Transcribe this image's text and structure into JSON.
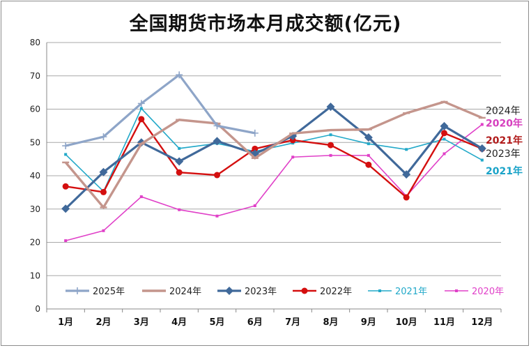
{
  "title": "全国期货市场本月成交额(亿元)",
  "chart_data": {
    "type": "line",
    "title": "全国期货市场本月成交额(亿元)",
    "categories": [
      "1月",
      "2月",
      "3月",
      "4月",
      "5月",
      "6月",
      "7月",
      "8月",
      "9月",
      "10月",
      "11月",
      "12月"
    ],
    "ylim": [
      0,
      80
    ],
    "yticks": [
      0,
      10,
      20,
      30,
      40,
      50,
      60,
      70,
      80
    ],
    "grid": "horizontal",
    "legend_position": "bottom",
    "series": [
      {
        "name": "2025年",
        "color": "#8ea5c8",
        "marker": "plus",
        "values": [
          49,
          51.7,
          61.7,
          70.3,
          55,
          52.8,
          null,
          null,
          null,
          null,
          null,
          null
        ]
      },
      {
        "name": "2024年",
        "color": "#c4958c",
        "marker": "dash",
        "values": [
          44,
          30.5,
          49.6,
          56.8,
          55.7,
          45.3,
          52.7,
          53.7,
          53.9,
          58.8,
          62.2,
          57.4
        ]
      },
      {
        "name": "2023年",
        "color": "#40699a",
        "marker": "diamond",
        "values": [
          30.1,
          41.1,
          50,
          44.3,
          50.4,
          46.6,
          51.9,
          60.7,
          51.5,
          40.4,
          54.9,
          48.2
        ]
      },
      {
        "name": "2022年",
        "color": "#d40f0f",
        "marker": "circle",
        "values": [
          36.8,
          35.1,
          57,
          41,
          40.2,
          48.1,
          50.7,
          49.2,
          43.3,
          33.5,
          52.8,
          48.1
        ]
      },
      {
        "name": "2021年",
        "color": "#22a9c9",
        "marker": "small",
        "values": [
          46.4,
          35.3,
          60.2,
          48.2,
          49.7,
          47.3,
          49.8,
          52.3,
          49.6,
          47.9,
          51,
          44.7
        ]
      },
      {
        "name": "2020年",
        "color": "#e040c8",
        "marker": "small",
        "values": [
          20.5,
          23.5,
          33.7,
          29.8,
          27.9,
          31,
          45.6,
          46.1,
          46.1,
          33.9,
          46.6,
          55.4
        ]
      }
    ],
    "end_labels": [
      {
        "text": "2024年",
        "color": "#222222",
        "value": 59.6
      },
      {
        "text": "2020年",
        "color": "#d63fbe",
        "value": 55.8
      },
      {
        "text": "2021年",
        "color": "#b11b1b",
        "value": 50.7
      },
      {
        "text": "2023年",
        "color": "#222222",
        "value": 46.7
      },
      {
        "text": "2021年",
        "color": "#1aa3c8",
        "value": 41.5
      }
    ]
  }
}
